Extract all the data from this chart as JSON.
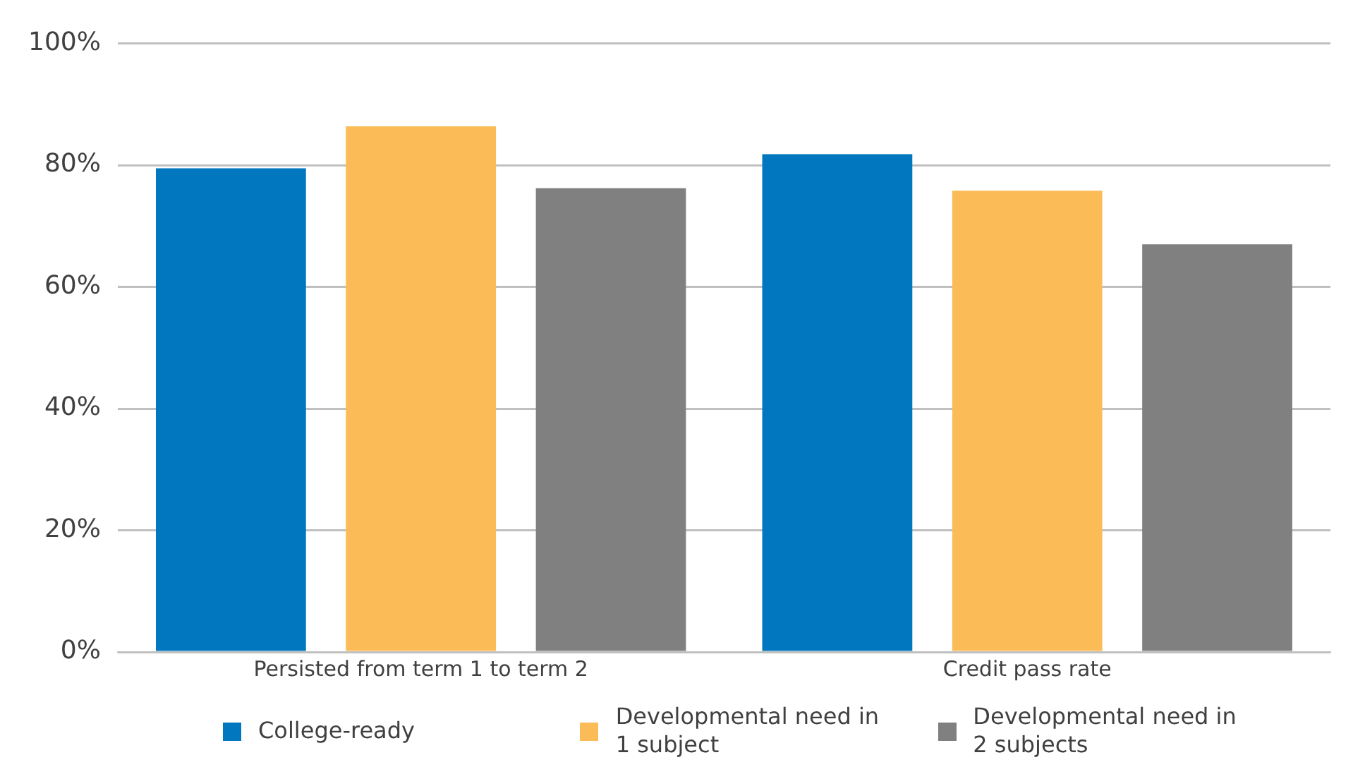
{
  "chart_data": {
    "type": "bar",
    "categories": [
      "Persisted from term 1 to term 2",
      "Credit pass rate"
    ],
    "series": [
      {
        "name": "College-ready",
        "color": "#0077bf",
        "values": [
          79.5,
          81.8
        ]
      },
      {
        "name": "Developmental need in 1 subject",
        "color": "#fbbc58",
        "values": [
          86.4,
          75.8
        ]
      },
      {
        "name": "Developmental need in 2 subjects",
        "color": "#808080",
        "values": [
          76.2,
          67.0
        ]
      }
    ],
    "ylim": [
      0,
      100
    ],
    "yticks": [
      {
        "value": 0,
        "label": "0%"
      },
      {
        "value": 20,
        "label": "20%"
      },
      {
        "value": 40,
        "label": "40%"
      },
      {
        "value": 60,
        "label": "60%"
      },
      {
        "value": 80,
        "label": "80%"
      },
      {
        "value": 100,
        "label": "100%"
      }
    ],
    "grid": "y",
    "legend": "bottom"
  }
}
